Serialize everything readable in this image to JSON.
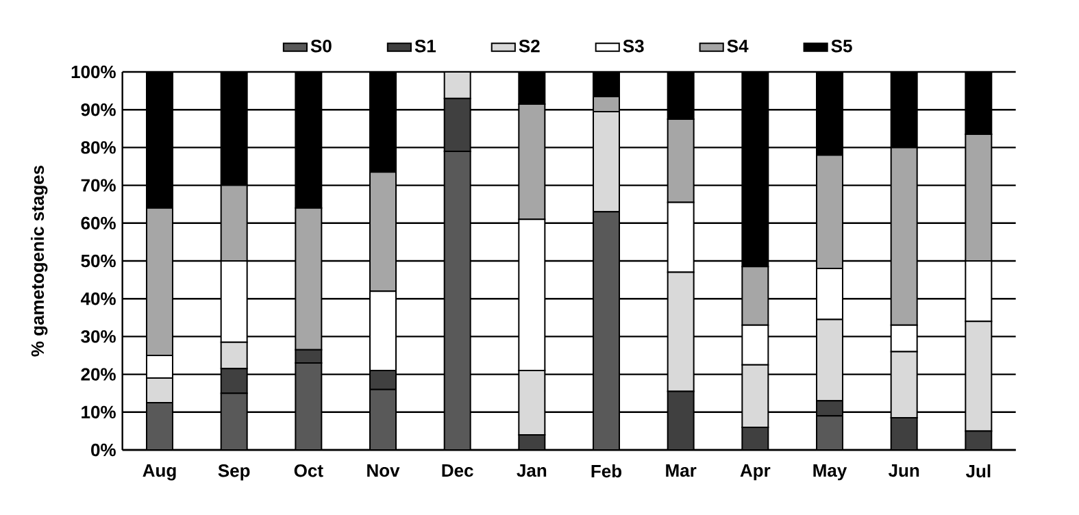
{
  "chart_data": {
    "type": "bar",
    "stacked": true,
    "ylabel": "% gametogenic stages",
    "categories": [
      "Aug",
      "Sep",
      "Oct",
      "Nov",
      "Dec",
      "Jan",
      "Feb",
      "Mar",
      "Apr",
      "May",
      "Jun",
      "Jul"
    ],
    "series": [
      {
        "name": "S0",
        "color": "#595959",
        "values": [
          12.5,
          15,
          23,
          16,
          79,
          0,
          63,
          0,
          0,
          9,
          0,
          0
        ]
      },
      {
        "name": "S1",
        "color": "#404040",
        "values": [
          0,
          6.5,
          3.5,
          5,
          14,
          4,
          0,
          15.5,
          6,
          4,
          8.5,
          5
        ]
      },
      {
        "name": "S2",
        "color": "#d9d9d9",
        "values": [
          6.5,
          7,
          0,
          0,
          7,
          17,
          26.5,
          31.5,
          16.5,
          21.5,
          17.5,
          29
        ]
      },
      {
        "name": "S3",
        "color": "#ffffff",
        "values": [
          6,
          21.5,
          0,
          21,
          0,
          40,
          0,
          18.5,
          10.5,
          13.5,
          7,
          16
        ]
      },
      {
        "name": "S4",
        "color": "#a6a6a6",
        "values": [
          39,
          20,
          37.5,
          31.5,
          0,
          30.5,
          4,
          22,
          15.5,
          30,
          47,
          33.5
        ]
      },
      {
        "name": "S5",
        "color": "#000000",
        "values": [
          36,
          30,
          36,
          26.5,
          0,
          8.5,
          6.5,
          12.5,
          51.5,
          22,
          20,
          16.5
        ]
      }
    ],
    "ylim": [
      0,
      100
    ],
    "yticks": [
      {
        "value": 0,
        "label": "0%"
      },
      {
        "value": 10,
        "label": "10%"
      },
      {
        "value": 20,
        "label": "20%"
      },
      {
        "value": 30,
        "label": "30%"
      },
      {
        "value": 40,
        "label": "40%"
      },
      {
        "value": 50,
        "label": "50%"
      },
      {
        "value": 60,
        "label": "60%"
      },
      {
        "value": 70,
        "label": "70%"
      },
      {
        "value": 80,
        "label": "80%"
      },
      {
        "value": 90,
        "label": "90%"
      },
      {
        "value": 100,
        "label": "100%"
      }
    ],
    "grid": "y",
    "legend": "top"
  }
}
